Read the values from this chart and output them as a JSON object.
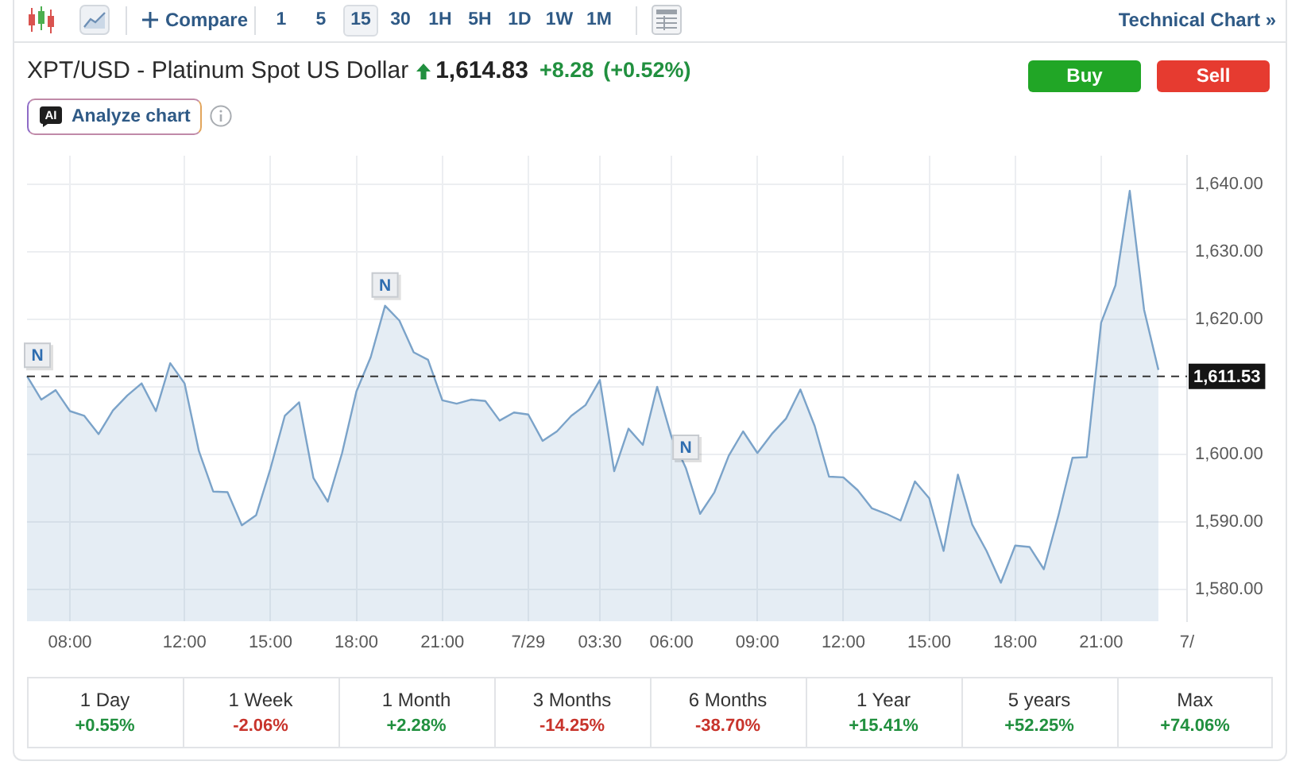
{
  "chart_data": {
    "type": "area",
    "title": "XPT/USD - Platinum Spot US Dollar",
    "categories": [
      null,
      null,
      null,
      "08:00",
      null,
      null,
      null,
      null,
      null,
      null,
      null,
      "12:00",
      null,
      null,
      null,
      null,
      null,
      "15:00",
      null,
      null,
      null,
      null,
      null,
      "18:00",
      null,
      null,
      null,
      null,
      null,
      "21:00",
      null,
      null,
      null,
      null,
      null,
      "7/29",
      null,
      null,
      null,
      null,
      "03:30",
      null,
      null,
      null,
      null,
      "06:00",
      null,
      null,
      null,
      null,
      null,
      "09:00",
      null,
      null,
      null,
      null,
      null,
      "12:00",
      null,
      null,
      null,
      null,
      null,
      "15:00",
      null,
      null,
      null,
      null,
      null,
      "18:00",
      null,
      null,
      null,
      null,
      null,
      "21:00",
      null,
      null,
      null,
      null,
      null,
      "7/"
    ],
    "values": [
      1611.6,
      1608.1,
      1609.5,
      1606.4,
      1605.7,
      1603.0,
      1606.5,
      1608.7,
      1610.5,
      1606.4,
      1613.5,
      1610.5,
      1600.5,
      1594.5,
      1594.4,
      1589.5,
      1591.0,
      1597.9,
      1605.7,
      1607.7,
      1596.5,
      1593.0,
      1600.2,
      1609.3,
      1614.4,
      1622.0,
      1619.8,
      1615.1,
      1614.0,
      1608.0,
      1607.5,
      1608.1,
      1607.9,
      1605.0,
      1606.2,
      1605.9,
      1602.0,
      1603.4,
      1605.7,
      1607.3,
      1611.0,
      1597.5,
      1603.8,
      1601.4,
      1610.0,
      1602.6,
      1598.0,
      1591.2,
      1594.4,
      1599.8,
      1603.4,
      1600.2,
      1603.0,
      1605.3,
      1609.6,
      1604.2,
      1596.7,
      1596.6,
      1594.7,
      1592.0,
      1591.2,
      1590.2,
      1596.0,
      1593.5,
      1585.7,
      1597.0,
      1589.6,
      1585.7,
      1581.0,
      1586.5,
      1586.3,
      1583.0,
      1590.8,
      1599.5,
      1599.6,
      1619.5,
      1625.0,
      1639.0,
      1621.4,
      1612.5,
      null,
      null
    ],
    "color": "#7ba3c9",
    "ylim": [
      1575.3,
      1644.2
    ],
    "yticks": [
      {
        "value": 1580,
        "label": "1,580.00"
      },
      {
        "value": 1590,
        "label": "1,590.00"
      },
      {
        "value": 1600,
        "label": "1,600.00"
      },
      {
        "value": 1610,
        "label": null
      },
      {
        "value": 1620,
        "label": "1,620.00"
      },
      {
        "value": 1630,
        "label": "1,630.00"
      },
      {
        "value": 1640,
        "label": "1,640.00"
      }
    ],
    "grid": true,
    "ref_lines": [
      {
        "axis": "y",
        "value": 1611.53,
        "label": "1,611.53",
        "color": "#333333",
        "line_style": "dashed"
      }
    ],
    "annotations": [
      "Compare",
      "1 5 15 30 1H 5H 1D 1W 1M",
      "Technical Chart »",
      "1,614.83",
      "+8.28",
      "(+0.52%)",
      "Buy",
      "Sell",
      "AI",
      "Analyze chart",
      "1 Day",
      "+0.55%",
      "1 Week",
      "-2.06%",
      "1 Month",
      "+2.28%",
      "3 Months",
      "-14.25%",
      "6 Months",
      "-38.70%",
      "1 Year",
      "+15.41%",
      "5 years",
      "+52.25%",
      "Max",
      "+74.06%",
      {
        "text": "N",
        "y": 1611.6
      },
      {
        "text": "N",
        "y": 1622.0
      },
      {
        "text": "N",
        "y": 1598.0
      }
    ]
  }
}
